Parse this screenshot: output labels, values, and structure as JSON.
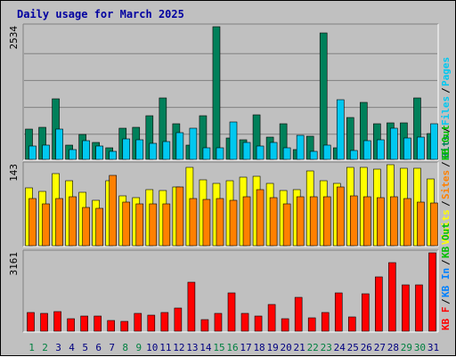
{
  "title": "Daily usage for March 2025",
  "colors": {
    "background": "#c0c0c0",
    "title": "#0000a0",
    "grid": "#808080",
    "hits": "#00805a",
    "files": "#00c8f0",
    "pages": "#00c8f0",
    "visits": "#ffff00",
    "sites": "#ff8000",
    "kbytes": "#ff0000",
    "kb_in": "#0080ff",
    "kb_out": "#00c000",
    "weekend": "#008040",
    "weekday": "#000080"
  },
  "chart_data": [
    {
      "type": "bar",
      "panel": "top",
      "ymax_label": "2534",
      "legend": [
        "Hits",
        "Files",
        "Pages"
      ],
      "x": [
        1,
        2,
        3,
        4,
        5,
        6,
        7,
        8,
        9,
        10,
        11,
        12,
        13,
        14,
        15,
        16,
        17,
        18,
        19,
        20,
        21,
        22,
        23,
        24,
        25,
        26,
        27,
        28,
        29,
        30,
        31
      ],
      "series": [
        {
          "name": "Hits",
          "values": [
            600,
            640,
            1180,
            300,
            500,
            350,
            250,
            620,
            640,
            860,
            1190,
            700,
            300,
            860,
            2534,
            440,
            400,
            880,
            450,
            700,
            220,
            470,
            2420,
            250,
            820,
            1100,
            710,
            720,
            720,
            1190,
            520
          ]
        },
        {
          "name": "Files",
          "values": [
            290,
            300,
            600,
            210,
            380,
            280,
            190,
            420,
            400,
            340,
            370,
            530,
            620,
            250,
            260,
            740,
            360,
            280,
            350,
            260,
            480,
            180,
            310,
            1160,
            200,
            380,
            410,
            620,
            430,
            460,
            710
          ]
        }
      ]
    },
    {
      "type": "bar",
      "panel": "middle",
      "ymax_label": "143",
      "legend": [
        "Visits",
        "Sites",
        "KB Out"
      ],
      "x": [
        1,
        2,
        3,
        4,
        5,
        6,
        7,
        8,
        9,
        10,
        11,
        12,
        13,
        14,
        15,
        16,
        17,
        18,
        19,
        20,
        21,
        22,
        23,
        24,
        25,
        26,
        27,
        28,
        29,
        30,
        31
      ],
      "series": [
        {
          "name": "Visits",
          "values": [
            98,
            92,
            122,
            110,
            90,
            77,
            109,
            85,
            82,
            95,
            93,
            100,
            131,
            111,
            106,
            110,
            116,
            117,
            106,
            93,
            95,
            126,
            109,
            106,
            132,
            132,
            129,
            136,
            130,
            130,
            113
          ]
        },
        {
          "name": "Sites",
          "values": [
            80,
            71,
            81,
            83,
            66,
            64,
            118,
            75,
            71,
            72,
            72,
            99,
            80,
            79,
            81,
            78,
            84,
            95,
            82,
            71,
            84,
            84,
            83,
            100,
            85,
            83,
            82,
            84,
            80,
            75,
            73
          ]
        }
      ]
    },
    {
      "type": "bar",
      "panel": "bottom",
      "ymax_label": "3161",
      "legend": [
        "KB F",
        "KB In",
        "KB Out"
      ],
      "x": [
        1,
        2,
        3,
        4,
        5,
        6,
        7,
        8,
        9,
        10,
        11,
        12,
        13,
        14,
        15,
        16,
        17,
        18,
        19,
        20,
        21,
        22,
        23,
        24,
        25,
        26,
        27,
        28,
        29,
        30,
        31
      ],
      "series": [
        {
          "name": "KBytes",
          "values": [
            800,
            780,
            860,
            570,
            650,
            650,
            480,
            460,
            780,
            700,
            820,
            970,
            1990,
            540,
            760,
            1590,
            770,
            650,
            1140,
            570,
            1390,
            600,
            810,
            1580,
            640,
            1550,
            2200,
            2760,
            1890,
            1890,
            3161
          ]
        }
      ]
    }
  ],
  "days": [
    {
      "label": "1",
      "weekend": true
    },
    {
      "label": "2",
      "weekend": true
    },
    {
      "label": "3",
      "weekend": false
    },
    {
      "label": "4",
      "weekend": false
    },
    {
      "label": "5",
      "weekend": false
    },
    {
      "label": "6",
      "weekend": false
    },
    {
      "label": "7",
      "weekend": false
    },
    {
      "label": "8",
      "weekend": true
    },
    {
      "label": "9",
      "weekend": true
    },
    {
      "label": "10",
      "weekend": false
    },
    {
      "label": "11",
      "weekend": false
    },
    {
      "label": "12",
      "weekend": false
    },
    {
      "label": "13",
      "weekend": false
    },
    {
      "label": "14",
      "weekend": false
    },
    {
      "label": "15",
      "weekend": true
    },
    {
      "label": "16",
      "weekend": true
    },
    {
      "label": "17",
      "weekend": false
    },
    {
      "label": "18",
      "weekend": false
    },
    {
      "label": "19",
      "weekend": false
    },
    {
      "label": "20",
      "weekend": false
    },
    {
      "label": "21",
      "weekend": false
    },
    {
      "label": "22",
      "weekend": true
    },
    {
      "label": "23",
      "weekend": true
    },
    {
      "label": "24",
      "weekend": false
    },
    {
      "label": "25",
      "weekend": false
    },
    {
      "label": "26",
      "weekend": false
    },
    {
      "label": "27",
      "weekend": false
    },
    {
      "label": "28",
      "weekend": false
    },
    {
      "label": "29",
      "weekend": true
    },
    {
      "label": "30",
      "weekend": true
    },
    {
      "label": "31",
      "weekend": false
    }
  ]
}
